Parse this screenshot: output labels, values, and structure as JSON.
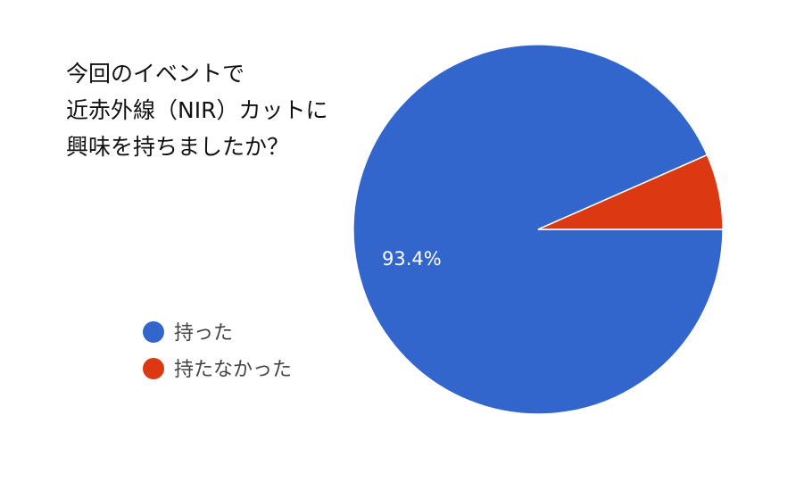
{
  "chart_data": {
    "type": "pie",
    "title_lines": [
      "今回のイベントで",
      "近赤外線（NIR）カットに",
      "興味を持ちましたか？"
    ],
    "categories": [
      "持った",
      "持たなかった"
    ],
    "values": [
      93.4,
      6.6
    ],
    "colors": [
      "#3366cc",
      "#dc3912"
    ],
    "data_labels": [
      "93.4%",
      ""
    ],
    "legend_position": "left"
  }
}
